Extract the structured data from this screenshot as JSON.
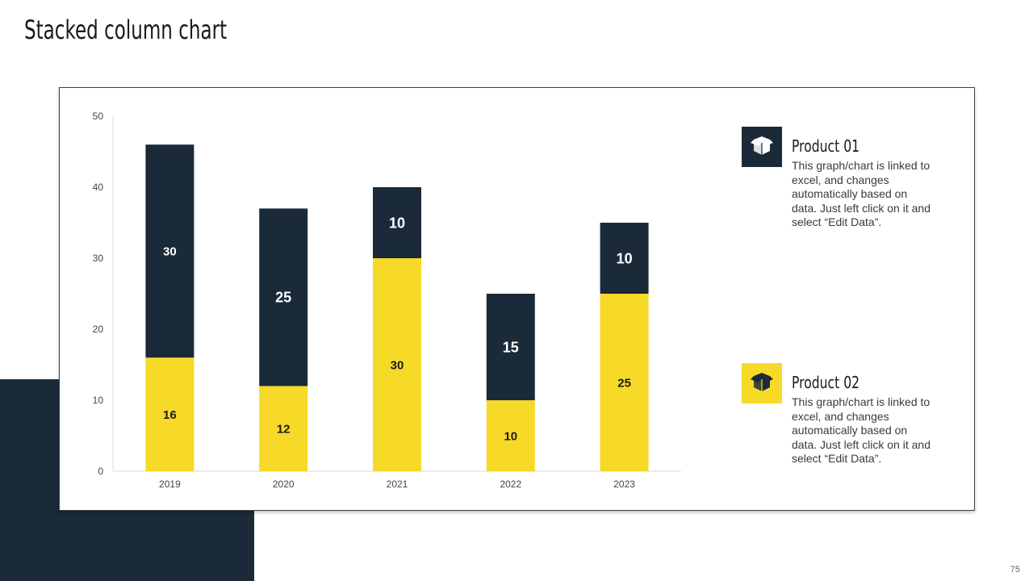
{
  "slide": {
    "title": "Stacked column chart",
    "page_number": "75"
  },
  "colors": {
    "dark": "#1b2a38",
    "yellow": "#f7d928",
    "axis_text": "#444444"
  },
  "legend": [
    {
      "title": "Product 01",
      "icon": "box-icon",
      "color": "#1b2a38",
      "description": "This graph/chart is linked to excel, and changes automatically based on data. Just left click on it and select “Edit Data”."
    },
    {
      "title": "Product 02",
      "icon": "box-icon",
      "color": "#f7d928",
      "description": "This graph/chart is linked to excel, and changes automatically based on data. Just left click on it and select “Edit Data”."
    }
  ],
  "chart_data": {
    "type": "bar",
    "stacked": true,
    "title": "Stacked column chart",
    "categories": [
      "2019",
      "2020",
      "2021",
      "2022",
      "2023"
    ],
    "series": [
      {
        "name": "Product 02",
        "color": "#f7d928",
        "label_color": "#1a1a1a",
        "values": [
          16,
          12,
          30,
          10,
          25
        ]
      },
      {
        "name": "Product 01",
        "color": "#1b2a38",
        "label_color": "#ffffff",
        "values": [
          30,
          25,
          10,
          15,
          10
        ]
      }
    ],
    "ylim": [
      0,
      50
    ],
    "yticks": [
      0,
      10,
      20,
      30,
      40,
      50
    ],
    "xlabel": "",
    "ylabel": "",
    "grid": false,
    "legend_position": "right"
  }
}
